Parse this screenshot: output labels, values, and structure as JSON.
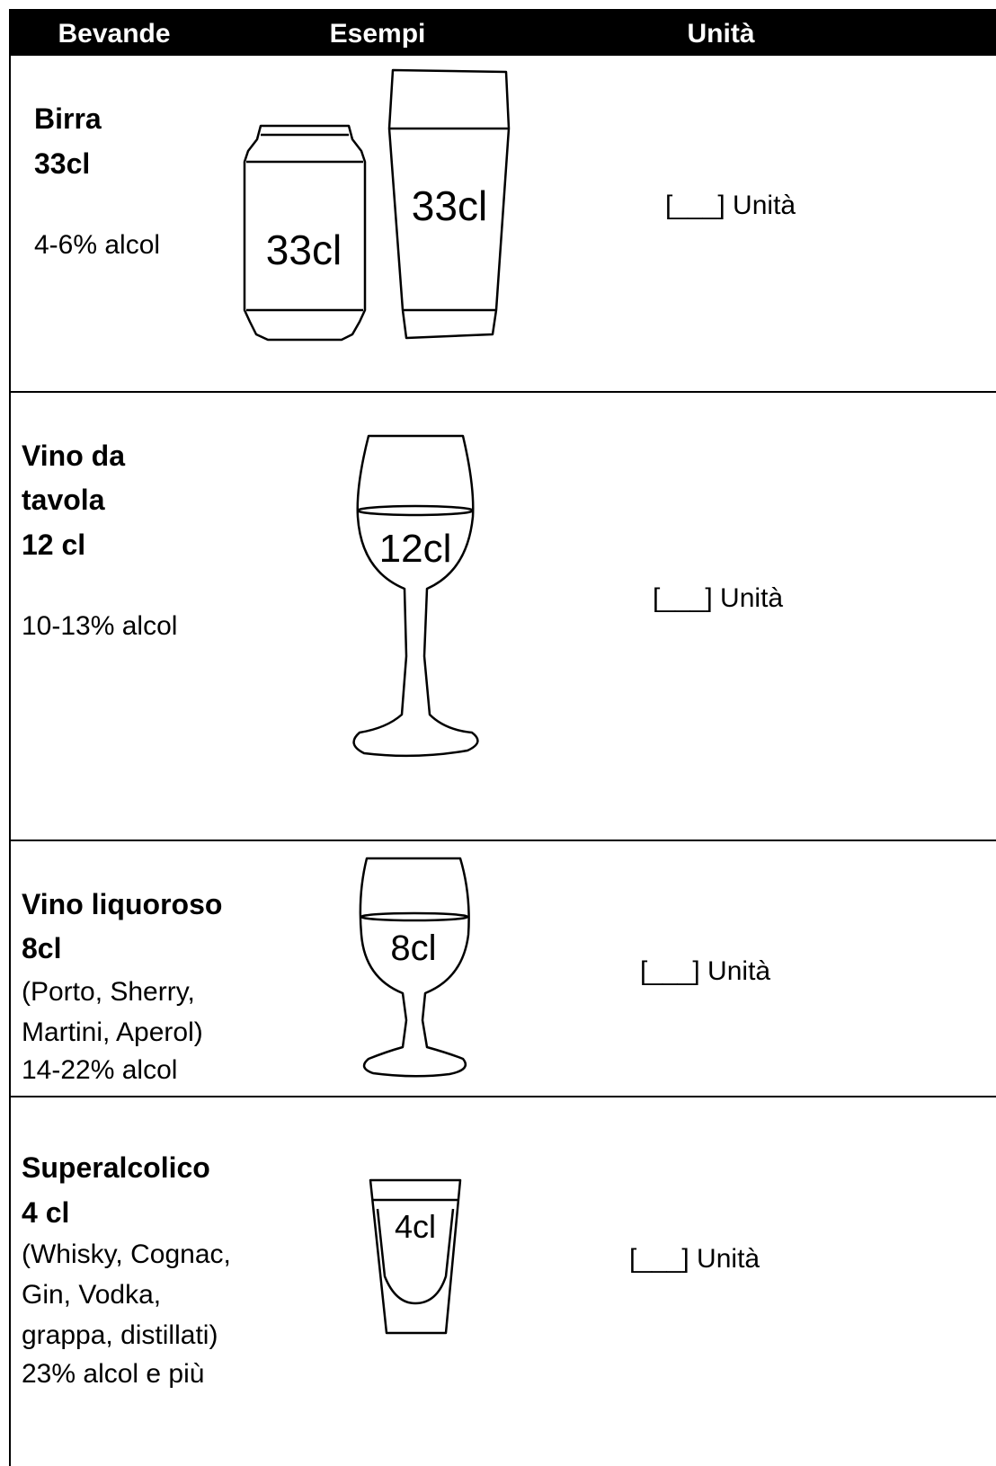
{
  "header": {
    "columns": [
      "Bevande",
      "Esempi",
      "Unità"
    ]
  },
  "rows": [
    {
      "name": [
        "Birra",
        "33cl"
      ],
      "details": [
        "4-6% alcol"
      ],
      "images": [
        "33cl",
        "33cl"
      ],
      "units": "[___] Unità"
    },
    {
      "name": [
        "Vino da",
        "tavola",
        "12 cl"
      ],
      "details": [
        "10-13% alcol"
      ],
      "images": [
        "12cl"
      ],
      "units": "[___] Unità"
    },
    {
      "name": [
        "Vino liquoroso",
        "8cl"
      ],
      "details": [
        "(Porto, Sherry,",
        "Martini, Aperol)",
        "14-22% alcol"
      ],
      "images": [
        "8cl"
      ],
      "units": "[___] Unità"
    },
    {
      "name": [
        "Superalcolico",
        "4  cl"
      ],
      "details": [
        "(Whisky, Cognac,",
        "Gin, Vodka,",
        "grappa, distillati)",
        "23% alcol e più"
      ],
      "images": [
        "4cl"
      ],
      "units": "[___] Unità"
    }
  ]
}
